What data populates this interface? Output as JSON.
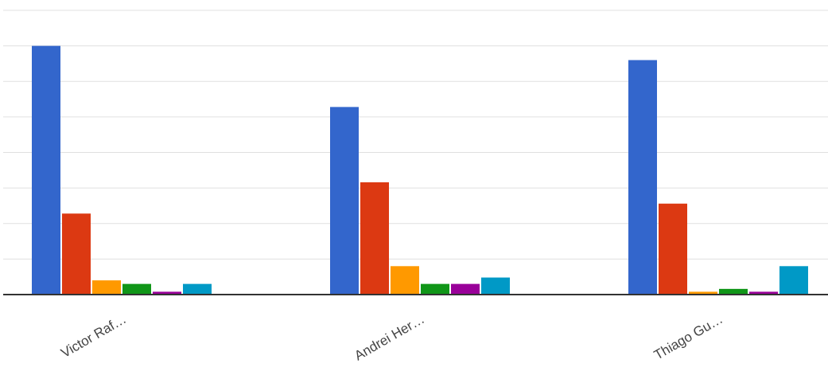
{
  "chart_data": {
    "type": "bar",
    "categories": [
      "Victor Raf…",
      "Andrei Her…",
      "Thiago Gu…"
    ],
    "series": [
      {
        "color": "#3366cc",
        "values": [
          35.0,
          26.4,
          33.0
        ]
      },
      {
        "color": "#dc3912",
        "values": [
          11.4,
          15.8,
          12.8
        ]
      },
      {
        "color": "#ff9900",
        "values": [
          2.0,
          4.0,
          0.4
        ]
      },
      {
        "color": "#109618",
        "values": [
          1.5,
          1.5,
          0.8
        ]
      },
      {
        "color": "#990099",
        "values": [
          0.4,
          1.5,
          0.4
        ]
      },
      {
        "color": "#0099c6",
        "values": [
          1.5,
          2.4,
          4.0
        ]
      }
    ],
    "ylim": [
      0,
      40
    ],
    "grid": true,
    "legend": "none"
  }
}
